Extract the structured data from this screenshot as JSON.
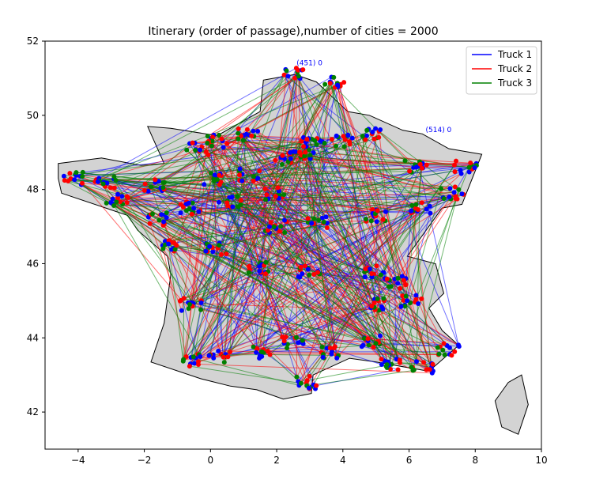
{
  "chart_data": {
    "type": "line",
    "title": "Itinerary (order of passage),number of cities = 2000",
    "xlabel": "",
    "ylabel": "",
    "xlim": [
      -5,
      10
    ],
    "ylim": [
      41,
      52
    ],
    "x_ticks": [
      -4,
      -2,
      0,
      2,
      4,
      6,
      8,
      10
    ],
    "y_ticks": [
      42,
      44,
      46,
      48,
      50,
      52
    ],
    "x_tick_labels": [
      "−4",
      "−2",
      "0",
      "2",
      "4",
      "6",
      "8",
      "10"
    ],
    "y_tick_labels": [
      "42",
      "44",
      "46",
      "48",
      "50",
      "52"
    ],
    "grid": false,
    "legend_position": "top-right",
    "series": [
      {
        "name": "Truck 1",
        "color": "#0000ff"
      },
      {
        "name": "Truck 2",
        "color": "#ff0000"
      },
      {
        "name": "Truck 3",
        "color": "#008000"
      }
    ],
    "city_labels": [
      "(451) 0",
      "(514) 0"
    ],
    "map": {
      "fill": "#d3d3d3",
      "mainland": [
        [
          -4.6,
          48.7
        ],
        [
          -3.3,
          48.85
        ],
        [
          -2.1,
          48.65
        ],
        [
          -1.4,
          48.7
        ],
        [
          -1.9,
          49.7
        ],
        [
          -1.2,
          49.65
        ],
        [
          0.2,
          49.45
        ],
        [
          1.5,
          50.1
        ],
        [
          1.6,
          50.95
        ],
        [
          2.55,
          51.1
        ],
        [
          3.2,
          50.9
        ],
        [
          4.15,
          50.1
        ],
        [
          4.8,
          50.0
        ],
        [
          5.8,
          49.6
        ],
        [
          6.4,
          49.5
        ],
        [
          7.2,
          49.1
        ],
        [
          8.2,
          48.95
        ],
        [
          7.6,
          47.6
        ],
        [
          7.0,
          47.5
        ],
        [
          5.95,
          46.2
        ],
        [
          6.8,
          46.0
        ],
        [
          7.05,
          45.2
        ],
        [
          6.6,
          44.8
        ],
        [
          7.0,
          44.2
        ],
        [
          7.5,
          43.8
        ],
        [
          6.6,
          43.1
        ],
        [
          5.0,
          43.35
        ],
        [
          4.2,
          43.45
        ],
        [
          3.1,
          43.0
        ],
        [
          3.05,
          42.5
        ],
        [
          2.2,
          42.35
        ],
        [
          1.4,
          42.6
        ],
        [
          0.6,
          42.7
        ],
        [
          -0.3,
          42.9
        ],
        [
          -1.8,
          43.35
        ],
        [
          -1.4,
          44.4
        ],
        [
          -1.2,
          45.7
        ],
        [
          -1.3,
          46.2
        ],
        [
          -2.2,
          46.9
        ],
        [
          -2.5,
          47.3
        ],
        [
          -4.5,
          47.9
        ],
        [
          -4.6,
          48.3
        ]
      ],
      "corsica": [
        [
          9.4,
          43.0
        ],
        [
          9.6,
          42.2
        ],
        [
          9.3,
          41.4
        ],
        [
          8.8,
          41.6
        ],
        [
          8.6,
          42.3
        ],
        [
          9.0,
          42.8
        ]
      ]
    },
    "clusters": [
      {
        "x": 2.5,
        "y": 51.1
      },
      {
        "x": 3.7,
        "y": 50.9
      },
      {
        "x": 2.9,
        "y": 49.0
      },
      {
        "x": 3.1,
        "y": 49.25
      },
      {
        "x": 2.3,
        "y": 48.85
      },
      {
        "x": 1.1,
        "y": 49.5
      },
      {
        "x": 0.2,
        "y": 49.3
      },
      {
        "x": -0.4,
        "y": 49.1
      },
      {
        "x": 4.0,
        "y": 49.3
      },
      {
        "x": 4.9,
        "y": 49.5
      },
      {
        "x": 6.2,
        "y": 48.6
      },
      {
        "x": 7.7,
        "y": 48.6
      },
      {
        "x": 7.3,
        "y": 47.9
      },
      {
        "x": 6.4,
        "y": 47.5
      },
      {
        "x": 5.0,
        "y": 47.3
      },
      {
        "x": 3.2,
        "y": 47.1
      },
      {
        "x": 1.9,
        "y": 47.9
      },
      {
        "x": 0.6,
        "y": 47.7
      },
      {
        "x": -0.6,
        "y": 47.5
      },
      {
        "x": -1.6,
        "y": 47.2
      },
      {
        "x": -2.8,
        "y": 47.7
      },
      {
        "x": -4.2,
        "y": 48.3
      },
      {
        "x": -3.2,
        "y": 48.2
      },
      {
        "x": -1.7,
        "y": 48.1
      },
      {
        "x": 0.0,
        "y": 48.3
      },
      {
        "x": -1.1,
        "y": 46.5
      },
      {
        "x": 0.2,
        "y": 46.4
      },
      {
        "x": 1.5,
        "y": 45.9
      },
      {
        "x": 3.0,
        "y": 45.8
      },
      {
        "x": 4.9,
        "y": 45.8
      },
      {
        "x": 5.6,
        "y": 45.5
      },
      {
        "x": 6.1,
        "y": 45.0
      },
      {
        "x": 4.9,
        "y": 44.9
      },
      {
        "x": -0.6,
        "y": 44.9
      },
      {
        "x": 0.3,
        "y": 43.5
      },
      {
        "x": 1.5,
        "y": 43.6
      },
      {
        "x": 2.5,
        "y": 43.9
      },
      {
        "x": 3.7,
        "y": 43.6
      },
      {
        "x": 4.8,
        "y": 43.9
      },
      {
        "x": 5.4,
        "y": 43.3
      },
      {
        "x": 6.4,
        "y": 43.2
      },
      {
        "x": 7.2,
        "y": 43.7
      },
      {
        "x": 2.9,
        "y": 42.8
      },
      {
        "x": -0.6,
        "y": 43.4
      },
      {
        "x": 1.2,
        "y": 48.4
      },
      {
        "x": 2.0,
        "y": 47.0
      }
    ]
  }
}
